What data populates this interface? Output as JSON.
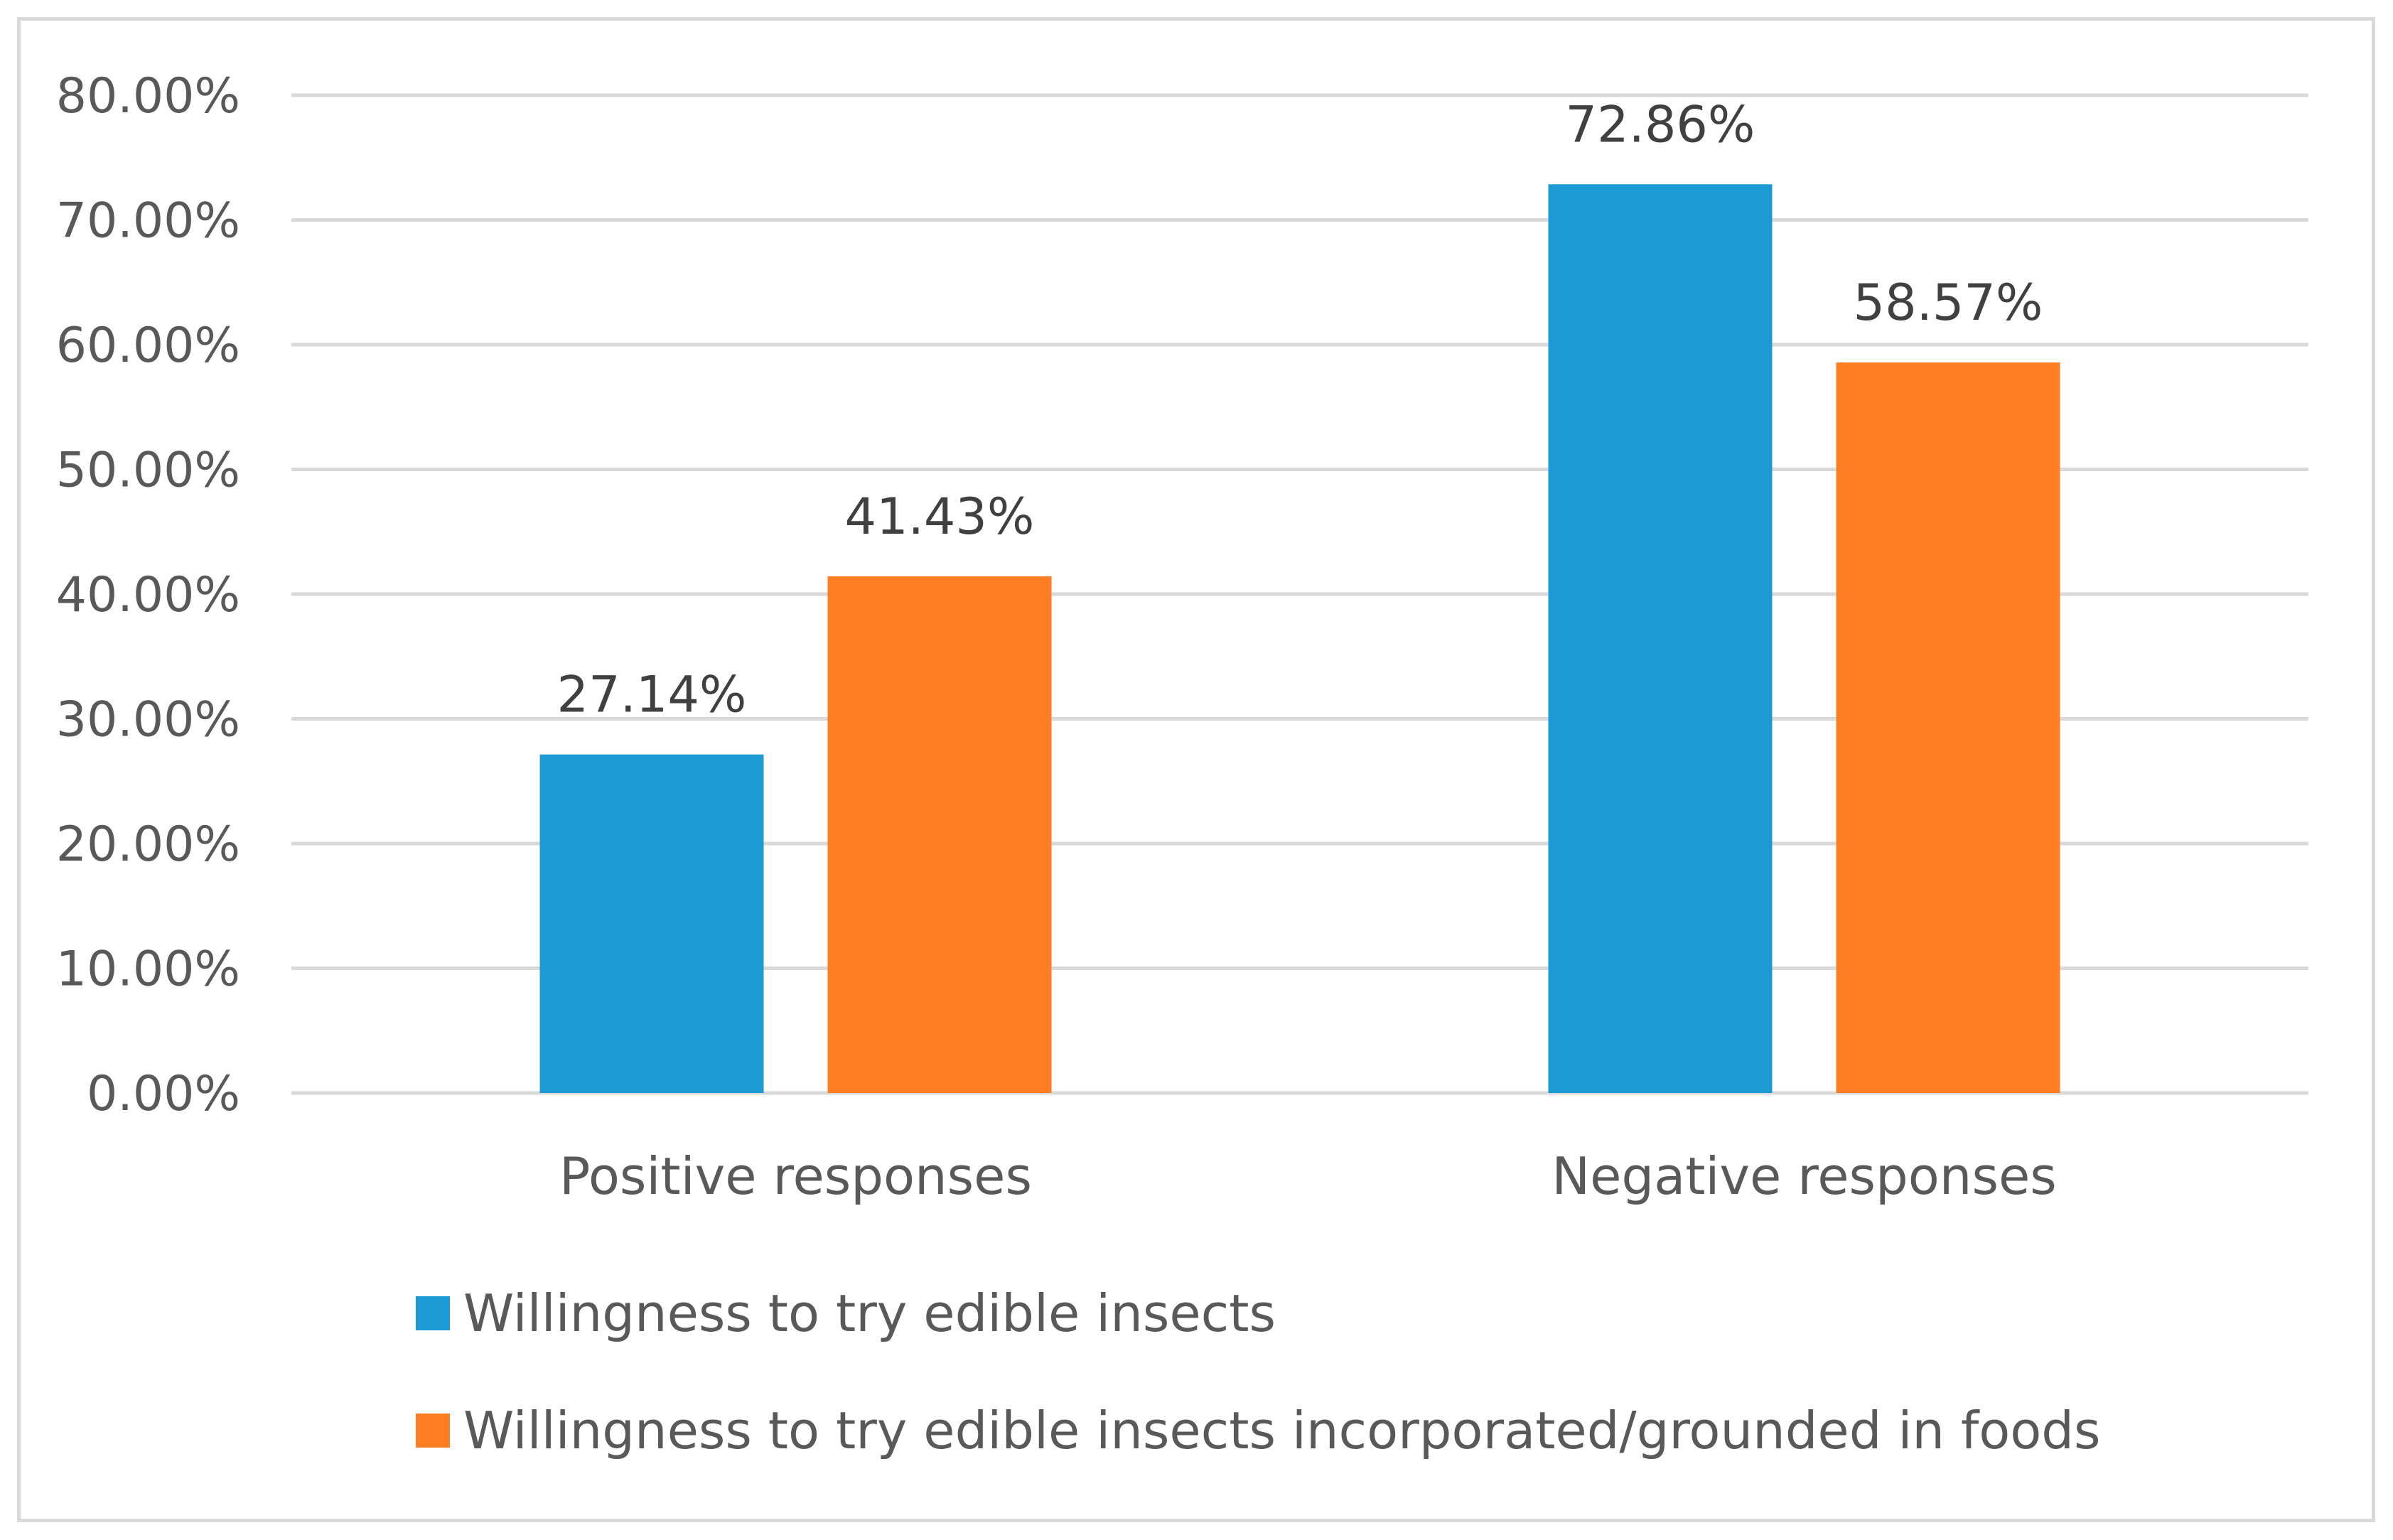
{
  "chart_data": {
    "type": "bar",
    "title": "",
    "xlabel": "",
    "ylabel": "",
    "ylim": [
      0,
      80
    ],
    "yticks": [
      0,
      10,
      20,
      30,
      40,
      50,
      60,
      70,
      80
    ],
    "ytick_labels": [
      "0.00%",
      "10.00%",
      "20.00%",
      "30.00%",
      "40.00%",
      "50.00%",
      "60.00%",
      "70.00%",
      "80.00%"
    ],
    "grid": true,
    "legend_position": "bottom-left",
    "categories": [
      "Positive responses",
      "Negative responses"
    ],
    "series": [
      {
        "name": "Willingness to try edible insects",
        "color": "#1c9ad6",
        "values": [
          27.14,
          72.86
        ],
        "labels": [
          "27.14%",
          "72.86%"
        ]
      },
      {
        "name": "Willingness to try edible insects incorporated/grounded in foods",
        "color": "#fd7e23",
        "values": [
          41.43,
          58.57
        ],
        "labels": [
          "41.43%",
          "58.57%"
        ]
      }
    ]
  }
}
